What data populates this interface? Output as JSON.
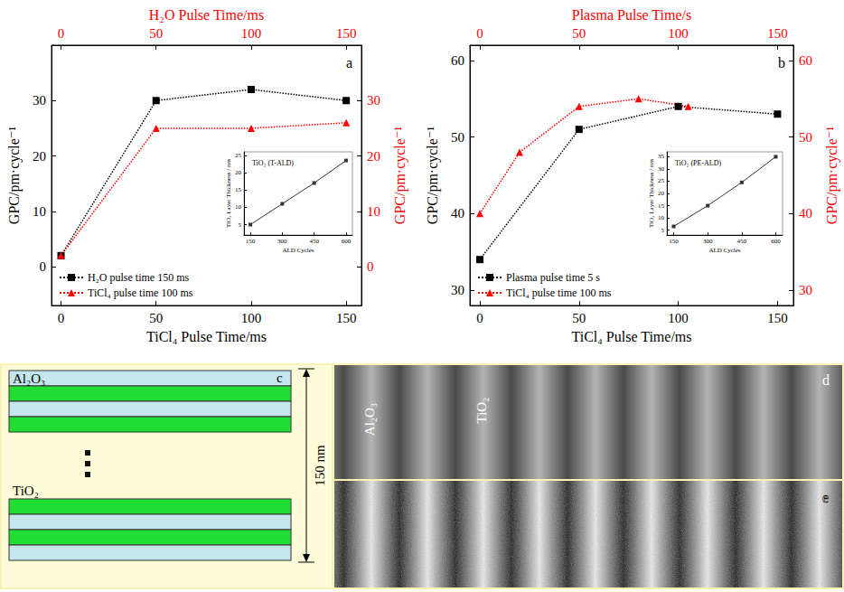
{
  "chart_data": [
    {
      "type": "line",
      "annotation": "a",
      "x_label": "TiCl₄ Pulse Time/ms",
      "x2_label": "H₂O Pulse Time/ms",
      "y_label": "GPC/pm·cycle⁻¹",
      "y2_label": "GPC/pm·cycle⁻¹",
      "xlim": [
        -5,
        158
      ],
      "xticks": [
        0,
        50,
        100,
        150
      ],
      "x2lim": [
        -5,
        158
      ],
      "x2ticks": [
        0,
        50,
        100,
        150
      ],
      "ylim": [
        -7,
        40
      ],
      "yticks": [
        0,
        10,
        20,
        30
      ],
      "y2lim": [
        -7,
        40
      ],
      "y2ticks": [
        0,
        10,
        20,
        30
      ],
      "legend": "lower left",
      "series": [
        {
          "name": "H₂O pulse time 150 ms",
          "color": "#000000",
          "marker": "square",
          "line_style": "dotted",
          "x": [
            0,
            50,
            100,
            150
          ],
          "values": [
            2,
            30,
            32,
            30
          ]
        },
        {
          "name": "TiCl₄ pulse time 100 ms",
          "color": "#ff0000",
          "marker": "triangle",
          "line_style": "dotted",
          "axis": "y2",
          "x2": [
            0,
            50,
            100,
            150
          ],
          "values": [
            2,
            25,
            25,
            26
          ]
        }
      ],
      "inset": {
        "title": "TiO₂ (T-ALD)",
        "x_label": "ALD Cycles",
        "y_label": "TiO₂ Layer Thickness / nm",
        "xlim": [
          120,
          630
        ],
        "xticks": [
          150,
          300,
          450,
          600
        ],
        "ylim": [
          2,
          26
        ],
        "yticks": [
          5,
          10,
          15,
          20,
          25
        ],
        "series": [
          {
            "color": "#333333",
            "marker": "square",
            "line_style": "solid",
            "x": [
              150,
              300,
              450,
              600
            ],
            "values": [
              5,
              11,
              17,
              23.5
            ]
          }
        ]
      }
    },
    {
      "type": "line",
      "annotation": "b",
      "x_label": "TiCl₄ Pulse Time/ms",
      "x2_label": "Plasma Pulse Time/s",
      "y_label": "GPC/pm·cycle⁻¹",
      "y2_label": "GPC/pm·cycle⁻¹",
      "xlim": [
        -5,
        158
      ],
      "xticks": [
        0,
        50,
        100,
        150
      ],
      "x2lim": [
        -5,
        158
      ],
      "x2ticks": [
        0,
        50,
        100,
        150
      ],
      "ylim": [
        28,
        62
      ],
      "yticks": [
        30,
        40,
        50,
        60
      ],
      "y2lim": [
        28,
        62
      ],
      "y2ticks": [
        30,
        40,
        50,
        60
      ],
      "legend": "lower left",
      "series": [
        {
          "name": "Plasma pulse time 5 s",
          "color": "#000000",
          "marker": "square",
          "line_style": "dotted",
          "x": [
            0,
            50,
            100,
            150
          ],
          "values": [
            34,
            51,
            54,
            53
          ]
        },
        {
          "name": "TiCl₄ pulse time 100 ms",
          "color": "#ff0000",
          "marker": "triangle",
          "line_style": "dotted",
          "axis": "y2",
          "x2": [
            0,
            20,
            50,
            80,
            105
          ],
          "values": [
            40,
            48,
            54,
            55,
            54
          ]
        }
      ],
      "inset": {
        "title": "TiO₂ (PE-ALD)",
        "x_label": "ALD Cycles",
        "y_label": "TiO₂ Layer Thickness / nm",
        "xlim": [
          120,
          630
        ],
        "xticks": [
          150,
          300,
          450,
          600
        ],
        "ylim": [
          3,
          37
        ],
        "yticks": [
          5,
          10,
          15,
          20,
          25,
          30,
          35
        ],
        "series": [
          {
            "color": "#333333",
            "marker": "square",
            "line_style": "solid",
            "x": [
              150,
              300,
              450,
              600
            ],
            "values": [
              6.5,
              15,
              24.5,
              35
            ]
          }
        ]
      }
    }
  ],
  "diagram": {
    "label": "c",
    "layers": [
      "Al₂O₃",
      "TiO₂"
    ],
    "thickness": "150 nm"
  },
  "micrographs": [
    {
      "label": "d",
      "texts": [
        "Al₂O₃",
        "TiO₂"
      ]
    },
    {
      "label": "e"
    }
  ]
}
